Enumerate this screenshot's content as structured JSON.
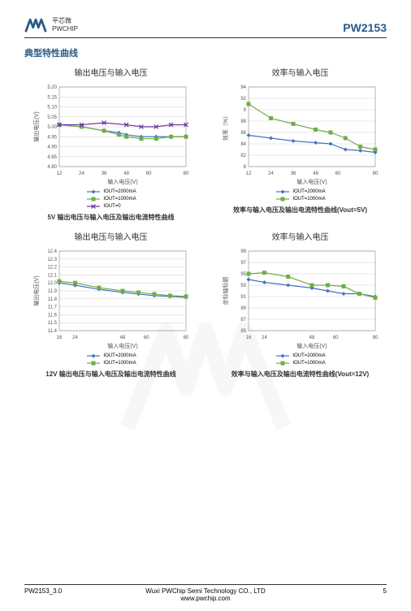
{
  "header": {
    "logo_cn": "平芯微",
    "logo_en": "PWCHIP",
    "part": "PW2153"
  },
  "section_title": "典型特性曲线",
  "colors": {
    "series_blue": "#4472c4",
    "series_green": "#70ad47",
    "series_purple": "#7030a0",
    "grid": "#d0d0d0",
    "axis": "#888888",
    "text": "#555555"
  },
  "charts": [
    {
      "title": "输出电压与输入电压",
      "caption": "5V 输出电压与输入电压及输出电流特性曲线",
      "ylabel": "输出电压(V)",
      "xlabel": "输入电压(V)",
      "ylim": [
        4.8,
        5.2
      ],
      "ystep": 0.05,
      "xticks": [
        12,
        24,
        36,
        48,
        60,
        80
      ],
      "series": [
        {
          "name": "IOUT=2000mA",
          "color": "#4472c4",
          "marker": "diamond",
          "data": [
            [
              12,
              5.01
            ],
            [
              24,
              5.0
            ],
            [
              36,
              4.98
            ],
            [
              44,
              4.97
            ],
            [
              48,
              4.96
            ],
            [
              56,
              4.95
            ],
            [
              64,
              4.95
            ],
            [
              72,
              4.95
            ],
            [
              80,
              4.95
            ]
          ]
        },
        {
          "name": "IOUT=1000mA",
          "color": "#70ad47",
          "marker": "square",
          "data": [
            [
              12,
              5.01
            ],
            [
              24,
              5.0
            ],
            [
              36,
              4.98
            ],
            [
              44,
              4.96
            ],
            [
              48,
              4.95
            ],
            [
              56,
              4.94
            ],
            [
              64,
              4.94
            ],
            [
              72,
              4.95
            ],
            [
              80,
              4.95
            ]
          ]
        },
        {
          "name": "IOUT=0",
          "color": "#7030a0",
          "marker": "x",
          "data": [
            [
              12,
              5.01
            ],
            [
              24,
              5.01
            ],
            [
              36,
              5.02
            ],
            [
              48,
              5.01
            ],
            [
              56,
              5.0
            ],
            [
              64,
              5.0
            ],
            [
              72,
              5.01
            ],
            [
              80,
              5.01
            ]
          ]
        }
      ]
    },
    {
      "title": "效率与输入电压",
      "caption": "效率与输入电压及输出电流特性曲线(Vout=5V)",
      "ylabel": "效率（%）",
      "xlabel": "输入电压(V)",
      "ylim": [
        80,
        94
      ],
      "ystep": 2,
      "xticks": [
        12,
        24,
        36,
        48,
        60,
        80
      ],
      "series": [
        {
          "name": "IOUT=2000mA",
          "color": "#4472c4",
          "marker": "diamond",
          "data": [
            [
              12,
              85.5
            ],
            [
              24,
              85
            ],
            [
              36,
              84.5
            ],
            [
              48,
              84.2
            ],
            [
              56,
              84
            ],
            [
              64,
              83
            ],
            [
              72,
              82.8
            ],
            [
              80,
              82.5
            ]
          ]
        },
        {
          "name": "IOUT=1000mA",
          "color": "#70ad47",
          "marker": "square",
          "data": [
            [
              12,
              91
            ],
            [
              24,
              88.5
            ],
            [
              36,
              87.5
            ],
            [
              48,
              86.5
            ],
            [
              56,
              86
            ],
            [
              64,
              85
            ],
            [
              72,
              83.5
            ],
            [
              80,
              83
            ]
          ]
        }
      ]
    },
    {
      "title": "输出电压与输入电压",
      "caption": "12V 输出电压与输入电压及输出电流特性曲线",
      "ylabel": "输出电压(V)",
      "xlabel": "输入电压(V)",
      "ylim": [
        11.4,
        12.4
      ],
      "ystep": 0.1,
      "xticks": [
        16,
        24,
        48,
        60,
        80
      ],
      "series": [
        {
          "name": "IOUT=2000mA",
          "color": "#4472c4",
          "marker": "diamond",
          "data": [
            [
              16,
              12.0
            ],
            [
              24,
              11.97
            ],
            [
              36,
              11.92
            ],
            [
              48,
              11.88
            ],
            [
              56,
              11.86
            ],
            [
              64,
              11.84
            ],
            [
              72,
              11.83
            ],
            [
              80,
              11.82
            ]
          ]
        },
        {
          "name": "IOUT=1000mA",
          "color": "#70ad47",
          "marker": "square",
          "data": [
            [
              16,
              12.02
            ],
            [
              24,
              12.0
            ],
            [
              36,
              11.94
            ],
            [
              48,
              11.9
            ],
            [
              56,
              11.88
            ],
            [
              64,
              11.86
            ],
            [
              72,
              11.84
            ],
            [
              80,
              11.83
            ]
          ]
        }
      ]
    },
    {
      "title": "效率与输入电压",
      "caption": "效率与输入电压及输出电流特性曲线(Vout=12V)",
      "ylabel": "坐标轴标题",
      "xlabel": "输入电压(V)",
      "ylim": [
        85,
        99
      ],
      "ystep": 2,
      "xticks": [
        16,
        24,
        48,
        60,
        80
      ],
      "series": [
        {
          "name": "IOUT=2000mA",
          "color": "#4472c4",
          "marker": "diamond",
          "data": [
            [
              16,
              94
            ],
            [
              24,
              93.5
            ],
            [
              36,
              93
            ],
            [
              48,
              92.5
            ],
            [
              56,
              92
            ],
            [
              64,
              91.5
            ],
            [
              72,
              91.5
            ],
            [
              80,
              91
            ]
          ]
        },
        {
          "name": "IOUT=1000mA",
          "color": "#70ad47",
          "marker": "square",
          "data": [
            [
              16,
              95
            ],
            [
              24,
              95.2
            ],
            [
              36,
              94.5
            ],
            [
              48,
              93
            ],
            [
              56,
              93
            ],
            [
              64,
              92.8
            ],
            [
              72,
              91.5
            ],
            [
              80,
              90.8
            ]
          ]
        }
      ]
    }
  ],
  "footer": {
    "left": "PW2153_3.0",
    "center": "Wuxi PWChip Semi Technology CO., LTD",
    "url": "www.pwchip.com",
    "page": "5"
  }
}
